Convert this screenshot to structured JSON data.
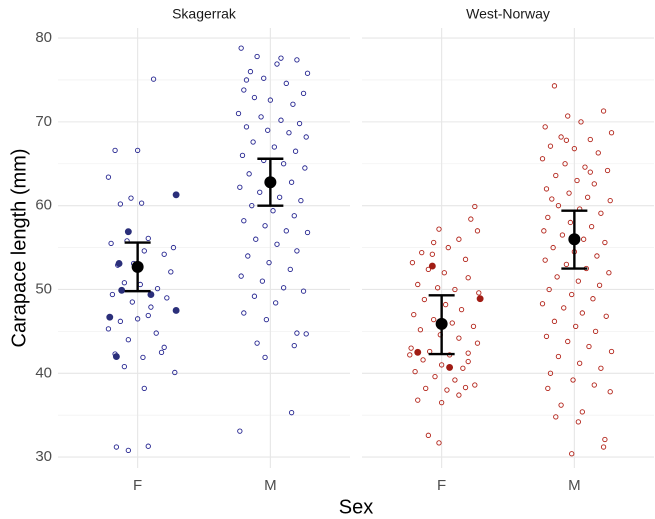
{
  "chart_data": {
    "type": "scatter",
    "ylabel": "Carapace length (mm)",
    "xlabel": "Sex",
    "ylim": [
      28.7,
      81.2
    ],
    "yticks": [
      30,
      40,
      50,
      60,
      70,
      80
    ],
    "minor_yticks": [
      35,
      45,
      55,
      65,
      75
    ],
    "xlim": [
      0.4,
      2.6
    ],
    "xticks": [
      {
        "value": 1,
        "label": "F"
      },
      {
        "value": 2,
        "label": "M"
      }
    ],
    "grid": true,
    "panels": [
      {
        "title": "Skagerrak",
        "series": [
          {
            "marker": "open",
            "color": "#23238f",
            "x": [
              0.78,
              0.83,
              1.12,
              1.0,
              0.95,
              1.03,
              0.87,
              0.8,
              0.92,
              1.08,
              1.27,
              1.2,
              0.85,
              0.97,
              1.05,
              1.25,
              0.9,
              1.02,
              1.15,
              0.81,
              1.22,
              0.96,
              1.1,
              0.87,
              1.0,
              1.08,
              0.78,
              1.14,
              0.93,
              1.2,
              0.83,
              1.18,
              1.04,
              0.9,
              1.28,
              1.05,
              0.84,
              0.93,
              1.08
            ],
            "values": [
              63.4,
              66.6,
              75.1,
              66.6,
              60.9,
              60.3,
              60.2,
              55.5,
              55.8,
              56.1,
              55.0,
              54.2,
              52.9,
              53.1,
              54.6,
              52.1,
              50.8,
              50.6,
              50.1,
              49.4,
              49.0,
              48.5,
              47.9,
              46.2,
              46.5,
              46.9,
              45.3,
              44.8,
              44.0,
              43.1,
              42.3,
              42.5,
              41.9,
              40.8,
              40.1,
              38.2,
              31.2,
              30.8,
              31.3
            ]
          },
          {
            "marker": "filled",
            "color": "#2b2f7a",
            "x": [
              1.29,
              0.93,
              0.86,
              0.88,
              1.1,
              0.79,
              1.29,
              0.84
            ],
            "values": [
              61.3,
              56.9,
              53.1,
              49.9,
              49.4,
              46.7,
              47.5,
              42.0
            ]
          },
          {
            "marker": "open",
            "color": "#23238f",
            "x": [
              1.78,
              1.9,
              2.2,
              2.05,
              1.85,
              2.28,
              1.95,
              2.12,
              1.8,
              2.25,
              1.88,
              2.0,
              2.17,
              1.76,
              1.93,
              2.08,
              2.22,
              1.82,
              1.98,
              2.14,
              2.27,
              1.87,
              2.03,
              2.19,
              1.79,
              1.95,
              2.1,
              2.26,
              1.84,
              2.0,
              2.16,
              1.77,
              1.92,
              2.07,
              2.23,
              1.86,
              2.02,
              2.18,
              1.8,
              1.96,
              2.12,
              2.28,
              1.89,
              2.05,
              2.2,
              1.83,
              1.99,
              2.15,
              1.78,
              1.94,
              2.1,
              2.25,
              1.88,
              2.04,
              1.8,
              1.97,
              2.2,
              2.27,
              1.9,
              1.96,
              2.18,
              2.16,
              1.77,
              1.82,
              2.08
            ],
            "values": [
              78.8,
              77.8,
              77.4,
              76.9,
              76.0,
              75.8,
              75.2,
              74.6,
              73.8,
              73.4,
              72.9,
              72.6,
              72.1,
              71.0,
              70.6,
              70.2,
              69.8,
              69.4,
              69.0,
              68.7,
              68.2,
              67.6,
              67.0,
              66.5,
              66.0,
              65.4,
              65.0,
              64.5,
              63.8,
              63.2,
              62.8,
              62.2,
              61.6,
              61.0,
              60.6,
              60.0,
              59.4,
              58.8,
              58.2,
              57.6,
              57.0,
              56.8,
              56.0,
              55.4,
              54.6,
              54.0,
              53.2,
              52.4,
              51.6,
              51.0,
              50.2,
              49.8,
              49.2,
              48.4,
              47.2,
              46.4,
              44.8,
              44.7,
              43.6,
              41.9,
              43.3,
              35.3,
              33.1,
              75.0,
              77.6
            ]
          }
        ],
        "summary": {
          "x": [
            1,
            2
          ],
          "mean": [
            52.7,
            62.8
          ],
          "lower": [
            49.8,
            60.0
          ],
          "upper": [
            55.6,
            65.6
          ]
        }
      },
      {
        "title": "West-Norway",
        "series": [
          {
            "marker": "open",
            "color": "#b22218",
            "x": [
              1.25,
              1.22,
              0.98,
              1.27,
              0.85,
              0.93,
              1.13,
              1.05,
              0.78,
              1.18,
              0.9,
              1.02,
              1.2,
              0.82,
              0.97,
              1.1,
              1.28,
              0.87,
              1.03,
              1.15,
              0.79,
              0.94,
              1.08,
              1.24,
              0.84,
              0.99,
              1.13,
              1.27,
              0.77,
              0.91,
              1.06,
              1.2,
              0.86,
              1.0,
              1.16,
              0.8,
              0.95,
              1.1,
              1.25,
              0.88,
              1.04,
              1.18,
              0.82,
              1.0,
              0.9,
              0.98,
              1.13,
              0.76,
              1.2,
              0.94
            ],
            "values": [
              59.9,
              58.4,
              57.2,
              57.0,
              54.4,
              54.2,
              56.0,
              55.0,
              53.2,
              53.6,
              52.4,
              52.0,
              51.4,
              50.6,
              50.2,
              50.0,
              49.6,
              48.8,
              48.2,
              47.6,
              47.0,
              46.4,
              46.0,
              45.6,
              45.2,
              44.6,
              44.2,
              43.6,
              43.0,
              42.6,
              42.2,
              42.4,
              41.6,
              41.0,
              40.6,
              40.2,
              39.6,
              39.2,
              38.6,
              38.2,
              38.0,
              38.3,
              36.8,
              36.5,
              32.6,
              31.7,
              37.4,
              42.2,
              41.4,
              55.6
            ]
          },
          {
            "marker": "filled",
            "color": "#a01c14",
            "x": [
              0.93,
              1.29,
              0.82,
              1.06
            ],
            "values": [
              52.8,
              48.9,
              42.5,
              40.7
            ]
          },
          {
            "marker": "open",
            "color": "#b22218",
            "x": [
              1.85,
              2.22,
              1.95,
              2.05,
              1.78,
              2.28,
              1.9,
              2.12,
              1.82,
              2.0,
              2.18,
              1.76,
              1.93,
              2.08,
              2.25,
              1.86,
              2.02,
              2.15,
              1.79,
              1.96,
              2.1,
              2.27,
              1.88,
              2.04,
              2.2,
              1.8,
              1.97,
              2.13,
              1.77,
              1.91,
              2.07,
              2.23,
              1.84,
              2.0,
              2.17,
              1.78,
              1.94,
              2.09,
              2.26,
              1.87,
              2.03,
              2.19,
              1.81,
              1.98,
              2.14,
              1.76,
              1.92,
              2.06,
              2.24,
              1.85,
              2.01,
              2.16,
              1.79,
              1.95,
              2.11,
              2.28,
              1.88,
              2.04,
              2.2,
              1.82,
              1.99,
              2.15,
              1.8,
              2.27,
              1.9,
              2.06,
              1.86,
              2.23,
              2.22,
              1.98,
              2.03,
              1.94,
              2.12,
              1.83
            ],
            "values": [
              74.3,
              71.3,
              70.7,
              70.0,
              69.4,
              68.7,
              68.2,
              67.9,
              67.1,
              66.8,
              66.3,
              65.6,
              65.0,
              64.6,
              64.2,
              63.6,
              63.0,
              62.6,
              62.0,
              61.5,
              61.0,
              60.6,
              60.0,
              59.6,
              59.1,
              58.6,
              58.0,
              57.5,
              57.0,
              56.5,
              56.0,
              55.6,
              55.0,
              54.5,
              54.0,
              53.5,
              53.0,
              52.5,
              52.0,
              51.5,
              51.0,
              50.5,
              50.0,
              49.4,
              48.9,
              48.3,
              47.8,
              47.2,
              46.8,
              46.2,
              45.6,
              45.0,
              44.4,
              43.8,
              43.2,
              42.6,
              42.0,
              41.2,
              40.6,
              40.0,
              39.2,
              38.6,
              38.2,
              37.8,
              36.2,
              35.4,
              34.8,
              32.1,
              31.2,
              30.4,
              34.2,
              67.8,
              64.0,
              60.8
            ]
          }
        ],
        "summary": {
          "x": [
            1,
            2
          ],
          "mean": [
            45.9,
            56.0
          ],
          "lower": [
            42.3,
            52.5
          ],
          "upper": [
            49.3,
            59.4
          ]
        }
      }
    ]
  }
}
